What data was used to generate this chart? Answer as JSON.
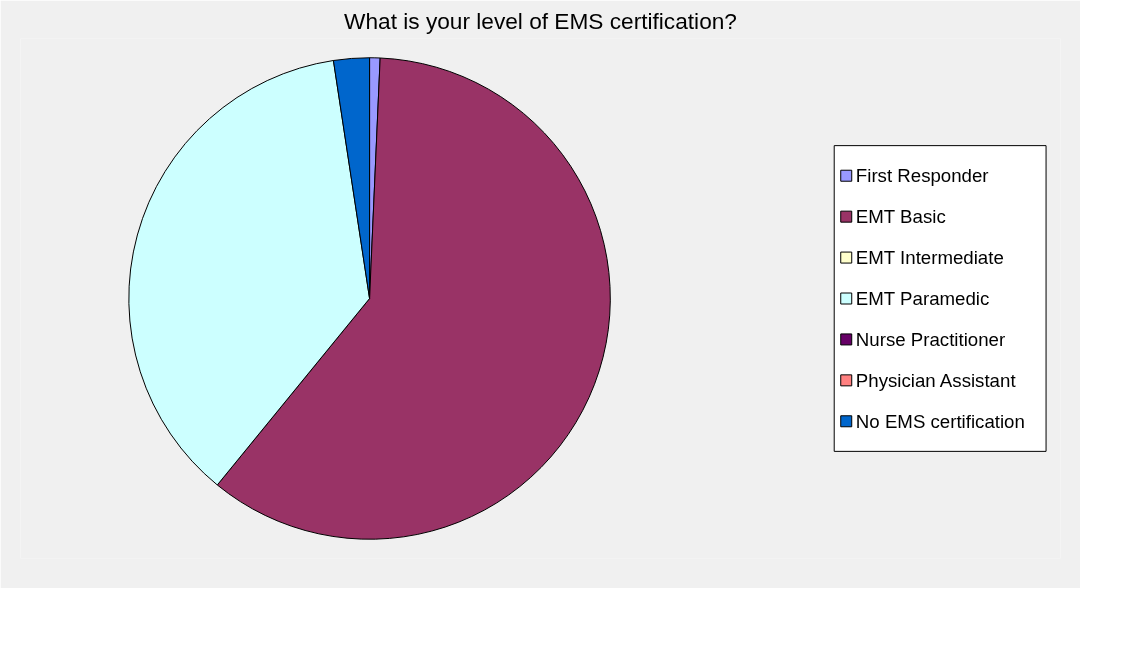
{
  "chart_data": {
    "type": "pie",
    "title": "What is your level of EMS certification?",
    "categories": [
      "First Responder",
      "EMT Basic",
      "EMT Intermediate",
      "EMT Paramedic",
      "Nurse Practitioner",
      "Physician Assistant",
      "No EMS certification"
    ],
    "values": [
      0.7,
      60.2,
      0,
      36.7,
      0,
      0,
      2.4
    ],
    "colors": [
      "#9999ff",
      "#993366",
      "#ffffcc",
      "#ccffff",
      "#660066",
      "#ff8080",
      "#0066cc"
    ],
    "legend": "right"
  }
}
